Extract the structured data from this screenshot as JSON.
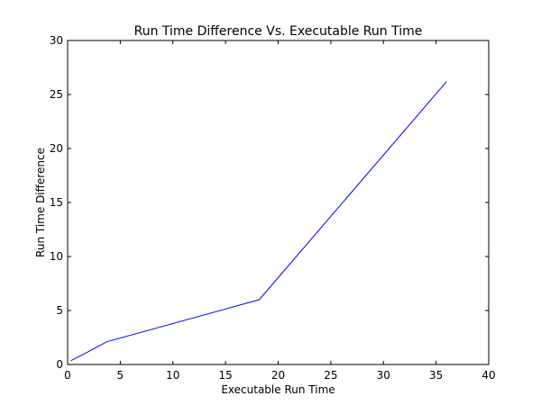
{
  "chart_data": {
    "type": "line",
    "title": "Run Time Difference Vs. Executable Run Time",
    "xlabel": "Executable Run Time",
    "ylabel": "Run Time Difference",
    "xlim": [
      0,
      40
    ],
    "ylim": [
      0,
      30
    ],
    "xticks": [
      0,
      5,
      10,
      15,
      20,
      25,
      30,
      35,
      40
    ],
    "yticks": [
      0,
      5,
      10,
      15,
      20,
      25,
      30
    ],
    "grid": false,
    "series": [
      {
        "color": "#0000ff",
        "x": [
          0.3,
          1.8,
          3.7,
          18.2,
          36.0
        ],
        "y": [
          0.35,
          1.1,
          2.1,
          6.0,
          26.2
        ]
      }
    ]
  }
}
